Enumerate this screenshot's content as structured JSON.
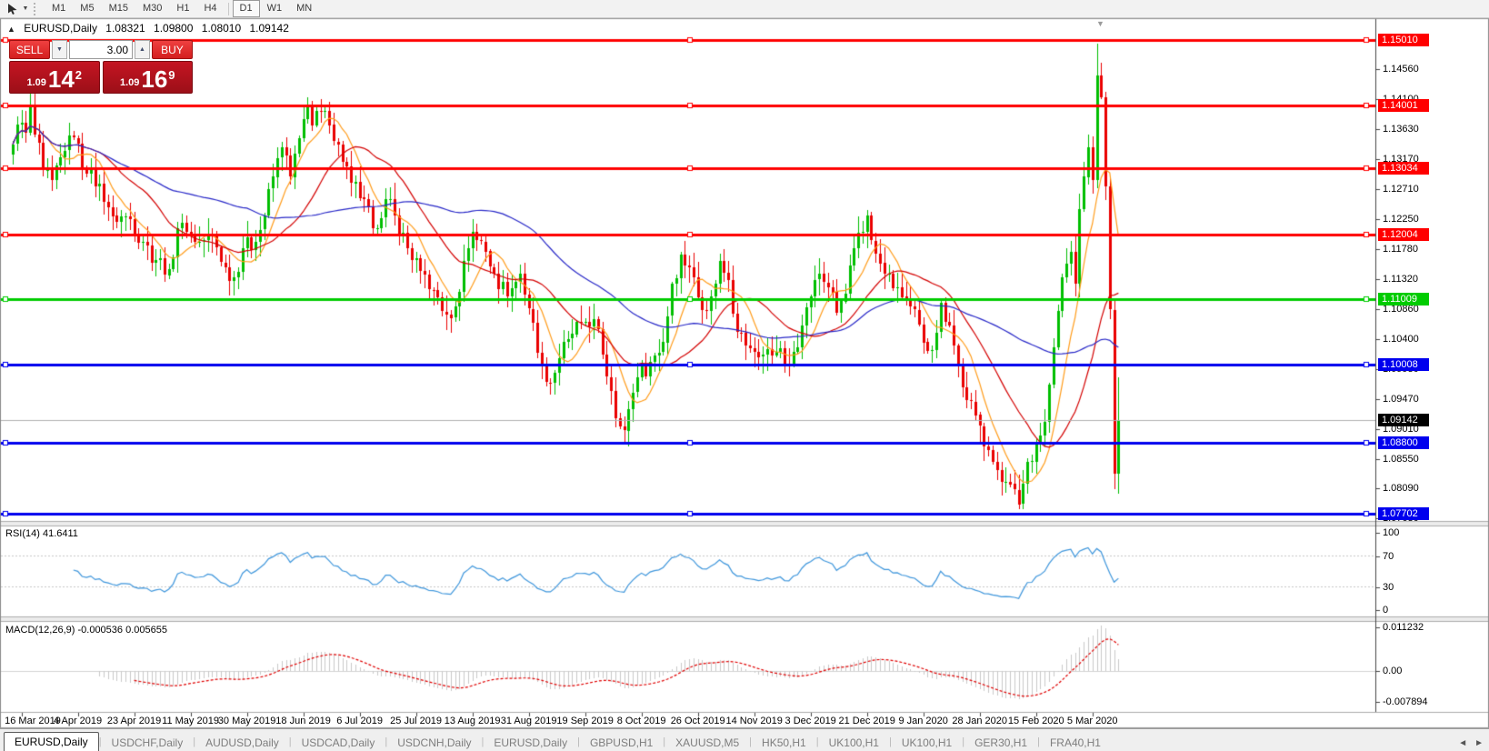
{
  "toolbar": {
    "tool_icon": "cursor-tool",
    "timeframes": [
      {
        "label": "M1",
        "active": false
      },
      {
        "label": "M5",
        "active": false
      },
      {
        "label": "M15",
        "active": false
      },
      {
        "label": "M30",
        "active": false
      },
      {
        "label": "H1",
        "active": false
      },
      {
        "label": "H4",
        "active": false
      },
      {
        "label": "D1",
        "active": true
      },
      {
        "label": "W1",
        "active": false
      },
      {
        "label": "MN",
        "active": false
      }
    ]
  },
  "chart_header": {
    "collapse_icon": "▲",
    "title": "EURUSD,Daily",
    "open": "1.08321",
    "high": "1.09800",
    "low": "1.08010",
    "close": "1.09142"
  },
  "trade_panel": {
    "sell_label": "SELL",
    "buy_label": "BUY",
    "spread_value": "3.00",
    "sell_price": {
      "small": "1.09",
      "big": "14",
      "sup": "2"
    },
    "buy_price": {
      "small": "1.09",
      "big": "16",
      "sup": "9"
    }
  },
  "price_axis": {
    "ticks": [
      "1.14560",
      "1.14100",
      "1.13630",
      "1.13170",
      "1.12710",
      "1.12250",
      "1.11780",
      "1.11320",
      "1.10860",
      "1.10400",
      "1.09930",
      "1.09470",
      "1.09010",
      "1.08550",
      "1.08090",
      "1.07630"
    ]
  },
  "level_labels": [
    {
      "text": "1.15010",
      "price": 1.1501,
      "bg": "#FF0000"
    },
    {
      "text": "1.14001",
      "price": 1.14001,
      "bg": "#FF0000"
    },
    {
      "text": "1.13034",
      "price": 1.13034,
      "bg": "#FF0000"
    },
    {
      "text": "1.12004",
      "price": 1.12004,
      "bg": "#FF0000"
    },
    {
      "text": "1.11009",
      "price": 1.11009,
      "bg": "#00CC00"
    },
    {
      "text": "1.10008",
      "price": 1.10008,
      "bg": "#0000EE"
    },
    {
      "text": "1.09142",
      "price": 1.09142,
      "bg": "#000000"
    },
    {
      "text": "1.08800",
      "price": 1.088,
      "bg": "#0000EE"
    },
    {
      "text": "1.07702",
      "price": 1.07702,
      "bg": "#0000EE"
    }
  ],
  "x_axis": {
    "labels": [
      "16 Mar 2019",
      "4 Apr 2019",
      "23 Apr 2019",
      "11 May 2019",
      "30 May 2019",
      "18 Jun 2019",
      "6 Jul 2019",
      "25 Jul 2019",
      "13 Aug 2019",
      "31 Aug 2019",
      "19 Sep 2019",
      "8 Oct 2019",
      "26 Oct 2019",
      "14 Nov 2019",
      "3 Dec 2019",
      "21 Dec 2019",
      "9 Jan 2020",
      "28 Jan 2020",
      "15 Feb 2020",
      "5 Mar 2020"
    ]
  },
  "rsi_panel": {
    "label": "RSI(14)",
    "value": "41.6411",
    "scale": [
      {
        "text": "100",
        "value": 100
      },
      {
        "text": "70",
        "value": 70
      },
      {
        "text": "30",
        "value": 30
      },
      {
        "text": "0",
        "value": 0
      }
    ],
    "line_color": "#3E96DC",
    "levels": [
      70,
      30
    ]
  },
  "macd_panel": {
    "label": "MACD(12,26,9)",
    "value1": "-0.000536",
    "value2": "0.005655",
    "scale": [
      {
        "text": "0.011232",
        "value": 0.011232
      },
      {
        "text": "0.00",
        "value": 0
      },
      {
        "text": "-0.007894",
        "value": -0.007894
      }
    ],
    "histogram_color": "#C9C9C9",
    "signal_color": "#E00000"
  },
  "tab_bar": {
    "tabs": [
      {
        "label": "EURUSD,Daily",
        "active": true
      },
      {
        "label": "USDCHF,Daily",
        "active": false
      },
      {
        "label": "AUDUSD,Daily",
        "active": false
      },
      {
        "label": "USDCAD,Daily",
        "active": false
      },
      {
        "label": "USDCNH,Daily",
        "active": false
      },
      {
        "label": "EURUSD,Daily",
        "active": false
      },
      {
        "label": "GBPUSD,H1",
        "active": false
      },
      {
        "label": "XAUUSD,M5",
        "active": false
      },
      {
        "label": "HK50,H1",
        "active": false
      },
      {
        "label": "UK100,H1",
        "active": false
      },
      {
        "label": "UK100,H1",
        "active": false
      },
      {
        "label": "GER30,H1",
        "active": false
      },
      {
        "label": "FRA40,H1",
        "active": false
      }
    ],
    "scroll_left": "◄",
    "scroll_right": "►"
  },
  "chart_data": {
    "type": "candlestick",
    "title": "EURUSD,Daily",
    "candle_count": 256,
    "y_axis": {
      "top": 1.15122,
      "bottom": 1.0759
    },
    "colors": {
      "bull": "#00BE00",
      "bear": "#EA0000",
      "ma_fast": "#FF9C1A",
      "ma_mid": "#D40000",
      "ma_slow": "#2828C8",
      "bid_line": "#B0B0B0"
    },
    "moving_averages": [
      {
        "period": 8,
        "key": "ma_fast"
      },
      {
        "period": 21,
        "key": "ma_mid"
      },
      {
        "period": 55,
        "key": "ma_slow"
      }
    ],
    "horizontal_lines": [
      {
        "price": 1.1501,
        "color": "#FF0000"
      },
      {
        "price": 1.14001,
        "color": "#FF0000"
      },
      {
        "price": 1.13034,
        "color": "#FF0000"
      },
      {
        "price": 1.12004,
        "color": "#FF0000"
      },
      {
        "price": 1.11009,
        "color": "#00CC00"
      },
      {
        "price": 1.10008,
        "color": "#0000EE"
      },
      {
        "price": 1.088,
        "color": "#0000EE"
      },
      {
        "price": 1.07702,
        "color": "#0000EE"
      }
    ],
    "current_price": 1.09142,
    "last_candle": {
      "open": 1.08321,
      "high": 1.098,
      "low": 1.0801,
      "close": 1.09142
    },
    "close_anchors": [
      [
        0,
        1.134
      ],
      [
        1,
        1.137
      ],
      [
        3,
        1.1358
      ],
      [
        4,
        1.14
      ],
      [
        5,
        1.1355
      ],
      [
        7,
        1.13
      ],
      [
        9,
        1.1285
      ],
      [
        12,
        1.133
      ],
      [
        14,
        1.135
      ],
      [
        17,
        1.1295
      ],
      [
        20,
        1.128
      ],
      [
        23,
        1.123
      ],
      [
        27,
        1.1225
      ],
      [
        30,
        1.119
      ],
      [
        33,
        1.1162
      ],
      [
        36,
        1.1148
      ],
      [
        38,
        1.121
      ],
      [
        40,
        1.1205
      ],
      [
        43,
        1.119
      ],
      [
        46,
        1.1198
      ],
      [
        49,
        1.115
      ],
      [
        51,
        1.1135
      ],
      [
        53,
        1.118
      ],
      [
        56,
        1.119
      ],
      [
        58,
        1.123
      ],
      [
        60,
        1.129
      ],
      [
        62,
        1.1335
      ],
      [
        64,
        1.129
      ],
      [
        66,
        1.135
      ],
      [
        68,
        1.1399
      ],
      [
        69,
        1.137
      ],
      [
        71,
        1.139
      ],
      [
        73,
        1.137
      ],
      [
        75,
        1.134
      ],
      [
        78,
        1.128
      ],
      [
        81,
        1.1255
      ],
      [
        83,
        1.121
      ],
      [
        86,
        1.1255
      ],
      [
        88,
        1.123
      ],
      [
        91,
        1.118
      ],
      [
        94,
        1.1145
      ],
      [
        97,
        1.1115
      ],
      [
        100,
        1.1078
      ],
      [
        102,
        1.109
      ],
      [
        104,
        1.116
      ],
      [
        106,
        1.1205
      ],
      [
        108,
        1.119
      ],
      [
        111,
        1.114
      ],
      [
        114,
        1.1105
      ],
      [
        117,
        1.114
      ],
      [
        120,
        1.1065
      ],
      [
        122,
        1.1
      ],
      [
        124,
        1.0972
      ],
      [
        126,
        1.101
      ],
      [
        128,
        1.104
      ],
      [
        131,
        1.1065
      ],
      [
        134,
        1.107
      ],
      [
        136,
        1.1015
      ],
      [
        138,
        1.096
      ],
      [
        140,
        1.0905
      ],
      [
        141,
        1.0899
      ],
      [
        142,
        1.0932
      ],
      [
        144,
        1.098
      ],
      [
        147,
        1.1005
      ],
      [
        150,
        1.1035
      ],
      [
        152,
        1.1125
      ],
      [
        154,
        1.117
      ],
      [
        156,
        1.115
      ],
      [
        159,
        1.1085
      ],
      [
        161,
        1.1105
      ],
      [
        163,
        1.116
      ],
      [
        165,
        1.113
      ],
      [
        167,
        1.105
      ],
      [
        170,
        1.1025
      ],
      [
        173,
        1.1015
      ],
      [
        176,
        1.102
      ],
      [
        179,
        1.1
      ],
      [
        182,
        1.106
      ],
      [
        184,
        1.1105
      ],
      [
        186,
        1.114
      ],
      [
        188,
        1.112
      ],
      [
        190,
        1.108
      ],
      [
        192,
        1.111
      ],
      [
        194,
        1.118
      ],
      [
        196,
        1.1205
      ],
      [
        197,
        1.123
      ],
      [
        199,
        1.1172
      ],
      [
        201,
        1.114
      ],
      [
        204,
        1.112
      ],
      [
        207,
        1.109
      ],
      [
        210,
        1.1035
      ],
      [
        212,
        1.1023
      ],
      [
        214,
        1.1095
      ],
      [
        216,
        1.106
      ],
      [
        218,
        1.1
      ],
      [
        220,
        1.0945
      ],
      [
        223,
        1.0905
      ],
      [
        226,
        1.085
      ],
      [
        229,
        1.082
      ],
      [
        232,
        1.0785
      ],
      [
        234,
        1.085
      ],
      [
        236,
        1.088
      ],
      [
        238,
        1.0912
      ],
      [
        240,
        1.1027
      ],
      [
        242,
        1.1135
      ],
      [
        244,
        1.1174
      ],
      [
        245,
        1.1125
      ],
      [
        246,
        1.124
      ],
      [
        247,
        1.129
      ],
      [
        248,
        1.1336
      ],
      [
        249,
        1.1285
      ],
      [
        250,
        1.1446
      ],
      [
        251,
        1.1413
      ],
      [
        252,
        1.1275
      ],
      [
        253,
        1.1085
      ],
      [
        254,
        1.0832
      ],
      [
        255,
        1.09142
      ]
    ],
    "candle_overrides": {
      "4": {
        "high": 1.1425
      },
      "51": {
        "low": 1.1107
      },
      "68": {
        "high": 1.1412
      },
      "141": {
        "low": 1.0879
      },
      "197": {
        "high": 1.1239
      },
      "232": {
        "low": 1.0778
      },
      "250": {
        "high": 1.1495
      },
      "255": {
        "open": 1.08321,
        "high": 1.098,
        "low": 1.0801,
        "close": 1.09142
      }
    },
    "indicators": {
      "rsi": {
        "period": 14,
        "current": 41.6411
      },
      "macd": {
        "fast": 12,
        "slow": 26,
        "signal": 9,
        "current_main": -0.000536,
        "current_signal": 0.005655
      }
    }
  }
}
